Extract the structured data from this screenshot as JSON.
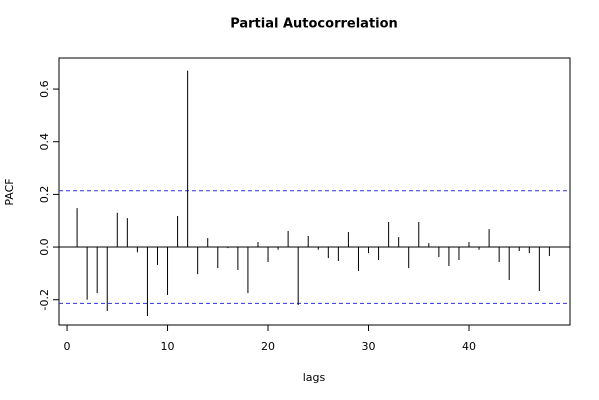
{
  "chart_data": {
    "type": "bar",
    "title": "Partial Autocorrelation",
    "xlabel": "lags",
    "ylabel": "PACF",
    "x": [
      1,
      2,
      3,
      4,
      5,
      6,
      7,
      8,
      9,
      10,
      11,
      12,
      13,
      14,
      15,
      16,
      17,
      18,
      19,
      20,
      21,
      22,
      23,
      24,
      25,
      26,
      27,
      28,
      29,
      30,
      31,
      32,
      33,
      34,
      35,
      36,
      37,
      38,
      39,
      40,
      41,
      42,
      43,
      44,
      45,
      46,
      47,
      48
    ],
    "values": [
      0.148,
      -0.2,
      -0.175,
      -0.243,
      0.13,
      0.11,
      -0.02,
      -0.262,
      -0.068,
      -0.182,
      0.118,
      0.67,
      -0.103,
      0.034,
      -0.08,
      -0.004,
      -0.087,
      -0.175,
      0.019,
      -0.057,
      -0.01,
      0.061,
      -0.22,
      0.042,
      -0.01,
      -0.042,
      -0.053,
      0.057,
      -0.091,
      -0.023,
      -0.049,
      0.095,
      0.038,
      -0.08,
      0.095,
      0.015,
      -0.038,
      -0.072,
      -0.049,
      0.019,
      -0.01,
      0.068,
      -0.057,
      -0.125,
      -0.015,
      -0.023,
      -0.167,
      -0.034
    ],
    "color": "#000000",
    "ci_bounds": [
      -0.214,
      0.214
    ],
    "ci_color": "#3030e0",
    "xlim": [
      -0.8,
      50.05
    ],
    "ylim": [
      -0.296,
      0.718
    ],
    "xticks": [
      0,
      10,
      20,
      30,
      40
    ],
    "yticks": [
      -0.2,
      {
        "value": 0,
        "label": "0.0"
      },
      0.2,
      0.4,
      0.6
    ]
  }
}
